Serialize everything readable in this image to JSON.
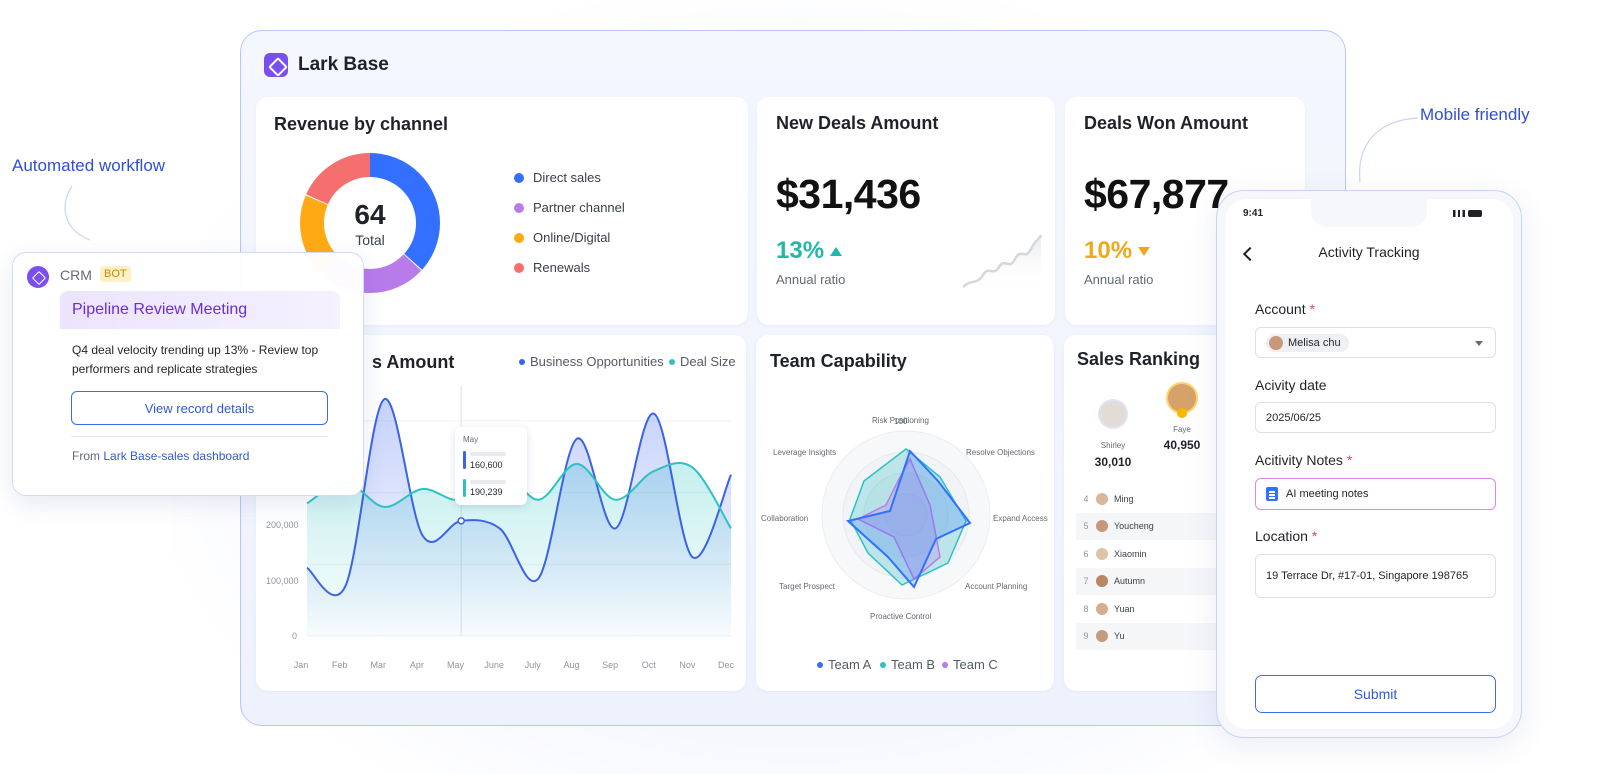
{
  "app": {
    "name": "Lark Base"
  },
  "side_labels": {
    "left": "Automated workflow",
    "right": "Mobile friendly"
  },
  "revenue": {
    "title": "Revenue by channel",
    "total_value": "64",
    "total_label": "Total",
    "legend": [
      {
        "label": "Direct sales",
        "color": "#3370ff"
      },
      {
        "label": "Partner channel",
        "color": "#b97bea"
      },
      {
        "label": "Online/Digital",
        "color": "#ffaa14"
      },
      {
        "label": "Renewals",
        "color": "#f56f6f"
      }
    ]
  },
  "new_deals": {
    "title": "New Deals Amount",
    "value": "$31,436",
    "pct": "13%",
    "ratio_label": "Annual ratio",
    "trend_color": "#20b9a7"
  },
  "deals_won": {
    "title": "Deals Won Amount",
    "value": "$67,877",
    "pct": "10%",
    "ratio_label": "Annual ratio",
    "trend_color": "#f0a81a"
  },
  "amount_chart": {
    "title_visible": "s Amount",
    "legend": [
      {
        "label": "Business Opportunities",
        "color": "#3a63e6"
      },
      {
        "label": "Deal Size",
        "color": "#2ec1c4"
      }
    ],
    "y_ticks": [
      "200,000",
      "100,000",
      "0"
    ],
    "months": [
      "Jan",
      "Feb",
      "Mar",
      "Apr",
      "May",
      "June",
      "July",
      "Aug",
      "Sep",
      "Oct",
      "Nov",
      "Dec"
    ],
    "tooltip": {
      "month": "May",
      "value_a": "160,600",
      "value_b": "190,239"
    }
  },
  "chart_data": {
    "type": "line",
    "title": "",
    "x": [
      "Jan",
      "Feb",
      "Mar",
      "Apr",
      "May",
      "June",
      "July",
      "Aug",
      "Sep",
      "Oct",
      "Nov",
      "Dec"
    ],
    "series": [
      {
        "name": "Business Opportunities",
        "values": [
          95000,
          70000,
          330000,
          140000,
          160600,
          150000,
          80000,
          275000,
          150000,
          310000,
          110000,
          225000
        ]
      },
      {
        "name": "Deal Size",
        "values": [
          185000,
          215000,
          180000,
          205000,
          190239,
          235000,
          190000,
          240000,
          190000,
          230000,
          235000,
          150000
        ]
      }
    ],
    "ylim": [
      0,
      350000
    ],
    "grid": true,
    "legend": "top-right"
  },
  "team": {
    "title": "Team Capability",
    "axes": [
      "Risk Positioning",
      "Resolve Objections",
      "Expand Access",
      "Account Planning",
      "Proactive Control",
      "Target Prospect",
      "Collaboration",
      "Leverage Insights"
    ],
    "scale_max": "100",
    "legend": [
      {
        "label": "Team A",
        "color": "#3370ff"
      },
      {
        "label": "Team B",
        "color": "#2ec1c4"
      },
      {
        "label": "Team C",
        "color": "#b97bea"
      }
    ]
  },
  "ranking": {
    "title": "Sales Ranking",
    "top": [
      {
        "name": "Shirley",
        "value": "30,010"
      },
      {
        "name": "Faye",
        "value": "40,950"
      }
    ],
    "rows": [
      {
        "rank": "4",
        "name": "Ming"
      },
      {
        "rank": "5",
        "name": "Youcheng"
      },
      {
        "rank": "6",
        "name": "Xiaomin"
      },
      {
        "rank": "7",
        "name": "Autumn"
      },
      {
        "rank": "8",
        "name": "Yuan"
      },
      {
        "rank": "9",
        "name": "Yu"
      }
    ]
  },
  "crm": {
    "title": "CRM",
    "badge": "BOT",
    "card_title": "Pipeline Review Meeting",
    "body": "Q4 deal velocity trending up 13% - Review top performers and replicate strategies",
    "button": "View record details",
    "from_prefix": "From",
    "from_link": "Lark Base-sales dashboard"
  },
  "phone": {
    "time": "9:41",
    "title": "Activity Tracking",
    "account_label": "Account",
    "account_value": "Melisa chu",
    "date_label": "Acivity date",
    "date_value": "2025/06/25",
    "notes_label": "Acitivity Notes",
    "notes_value": "AI meeting notes",
    "location_label": "Location",
    "location_value": "19 Terrace Dr, #17-01, Singapore 198765",
    "required_mark": "*",
    "submit": "Submit"
  }
}
